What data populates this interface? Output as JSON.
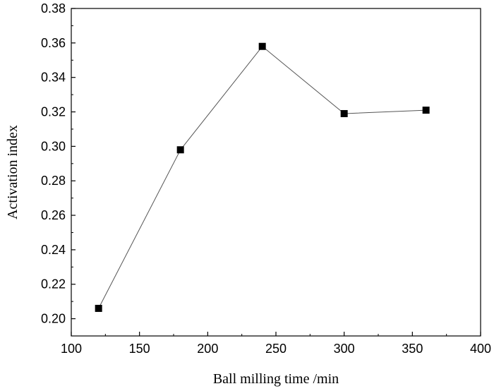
{
  "chart_data": {
    "type": "line",
    "title": "",
    "xlabel": "Ball milling time /min",
    "ylabel": "Activation index",
    "xlim": [
      100,
      400
    ],
    "ylim": [
      0.19,
      0.38
    ],
    "x_ticks": [
      100,
      150,
      200,
      250,
      300,
      350,
      400
    ],
    "x_tick_labels": [
      "100",
      "150",
      "200",
      "250",
      "300",
      "350",
      "400"
    ],
    "y_ticks": [
      0.2,
      0.22,
      0.24,
      0.26,
      0.28,
      0.3,
      0.32,
      0.34,
      0.36,
      0.38
    ],
    "y_tick_labels": [
      "0.20",
      "0.22",
      "0.24",
      "0.26",
      "0.28",
      "0.30",
      "0.32",
      "0.34",
      "0.36",
      "0.38"
    ],
    "grid": false,
    "series": [
      {
        "name": "Activation index",
        "marker": "square",
        "color": "#000000",
        "x": [
          120,
          180,
          240,
          300,
          360
        ],
        "y": [
          0.206,
          0.298,
          0.358,
          0.319,
          0.321
        ]
      }
    ]
  }
}
